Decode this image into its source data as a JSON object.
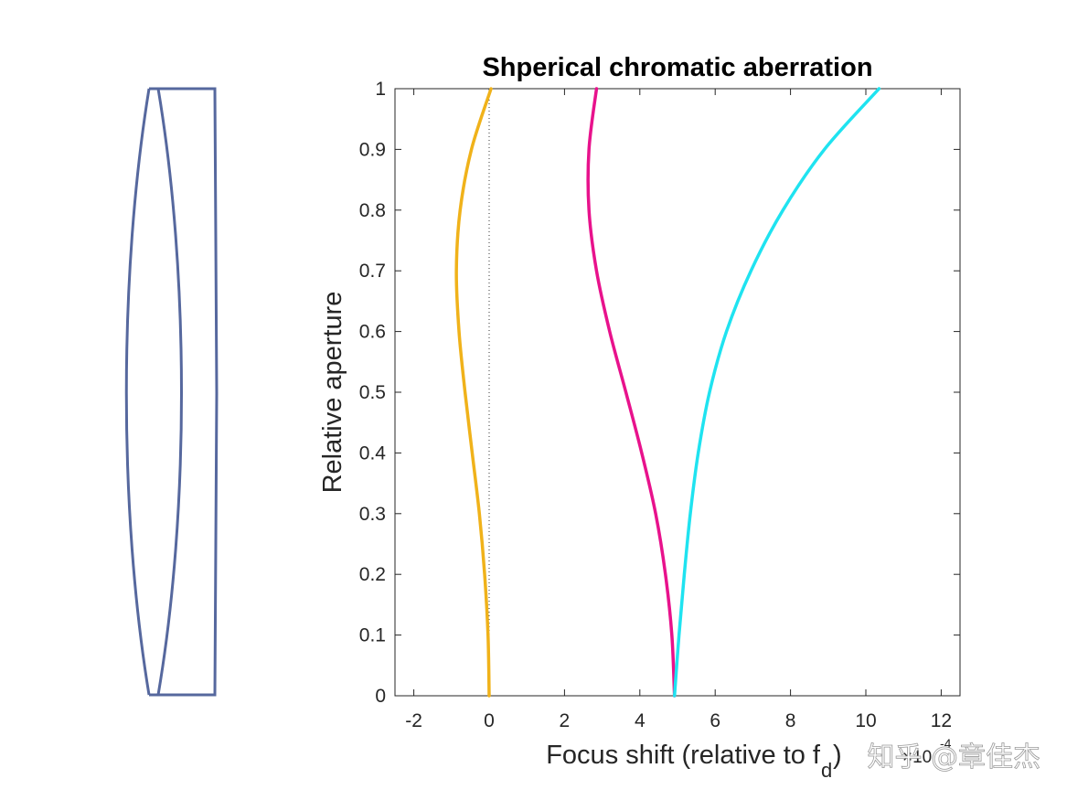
{
  "chart_data": {
    "type": "line",
    "title": "Shperical chromatic aberration",
    "xlabel": "Focus shift (relative to f",
    "xlabel_subscript": "d",
    "xlabel_tail": ")",
    "x_exponent_prefix": "×10",
    "x_exponent": "-4",
    "ylabel": "Relative aperture",
    "xlim": [
      -2.5,
      12.5
    ],
    "ylim": [
      0,
      1
    ],
    "xticks": [
      -2,
      0,
      2,
      4,
      6,
      8,
      10,
      12
    ],
    "yticks": [
      0,
      0.1,
      0.2,
      0.3,
      0.4,
      0.5,
      0.6,
      0.7,
      0.8,
      0.9,
      1
    ],
    "grid": false,
    "reference_line": {
      "x": 0,
      "style": "dotted"
    },
    "series": [
      {
        "color": "#F0B21A",
        "y": [
          0,
          0.1,
          0.2,
          0.3,
          0.4,
          0.5,
          0.6,
          0.7,
          0.8,
          0.9,
          1.0
        ],
        "x": [
          0.0,
          -0.03,
          -0.12,
          -0.26,
          -0.45,
          -0.64,
          -0.8,
          -0.87,
          -0.77,
          -0.47,
          0.05
        ]
      },
      {
        "color": "#E8128C",
        "y": [
          0,
          0.1,
          0.2,
          0.3,
          0.4,
          0.5,
          0.6,
          0.7,
          0.8,
          0.9,
          1.0
        ],
        "x": [
          4.92,
          4.85,
          4.68,
          4.42,
          4.05,
          3.63,
          3.2,
          2.85,
          2.65,
          2.65,
          2.85
        ]
      },
      {
        "color": "#1FE3F0",
        "y": [
          0,
          0.1,
          0.2,
          0.3,
          0.4,
          0.5,
          0.6,
          0.7,
          0.8,
          0.9,
          1.0
        ],
        "x": [
          4.92,
          5.04,
          5.18,
          5.34,
          5.55,
          5.85,
          6.3,
          6.95,
          7.8,
          8.9,
          10.35
        ]
      }
    ]
  },
  "lens_diagram": {
    "stroke_color": "#56689E"
  },
  "watermark": {
    "text": "知乎 @章佳杰"
  }
}
